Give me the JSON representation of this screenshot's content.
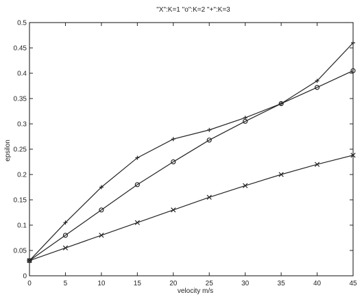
{
  "chart_data": {
    "type": "line",
    "title": "\"X\":K=1 \"o\":K=2 \"+\":K=3",
    "xlabel": "velocity m/s",
    "ylabel": "epsilon",
    "xlim": [
      0,
      45
    ],
    "ylim": [
      0,
      0.5
    ],
    "x_ticks": [
      0,
      5,
      10,
      15,
      20,
      25,
      30,
      35,
      40,
      45
    ],
    "y_ticks": [
      0,
      0.05,
      0.1,
      0.15,
      0.2,
      0.25,
      0.3,
      0.35,
      0.4,
      0.45,
      0.5
    ],
    "grid": false,
    "x": [
      0,
      5,
      10,
      15,
      20,
      25,
      30,
      35,
      40,
      45
    ],
    "series": [
      {
        "marker": "x",
        "values": [
          0.03,
          0.055,
          0.08,
          0.105,
          0.13,
          0.155,
          0.178,
          0.2,
          0.22,
          0.238
        ]
      },
      {
        "marker": "o",
        "values": [
          0.03,
          0.08,
          0.13,
          0.18,
          0.225,
          0.268,
          0.305,
          0.34,
          0.372,
          0.405
        ]
      },
      {
        "marker": "+",
        "values": [
          0.03,
          0.105,
          0.175,
          0.233,
          0.27,
          0.288,
          0.312,
          0.34,
          0.385,
          0.46
        ]
      }
    ],
    "line_color": "#222222",
    "axis_color": "#222222"
  }
}
